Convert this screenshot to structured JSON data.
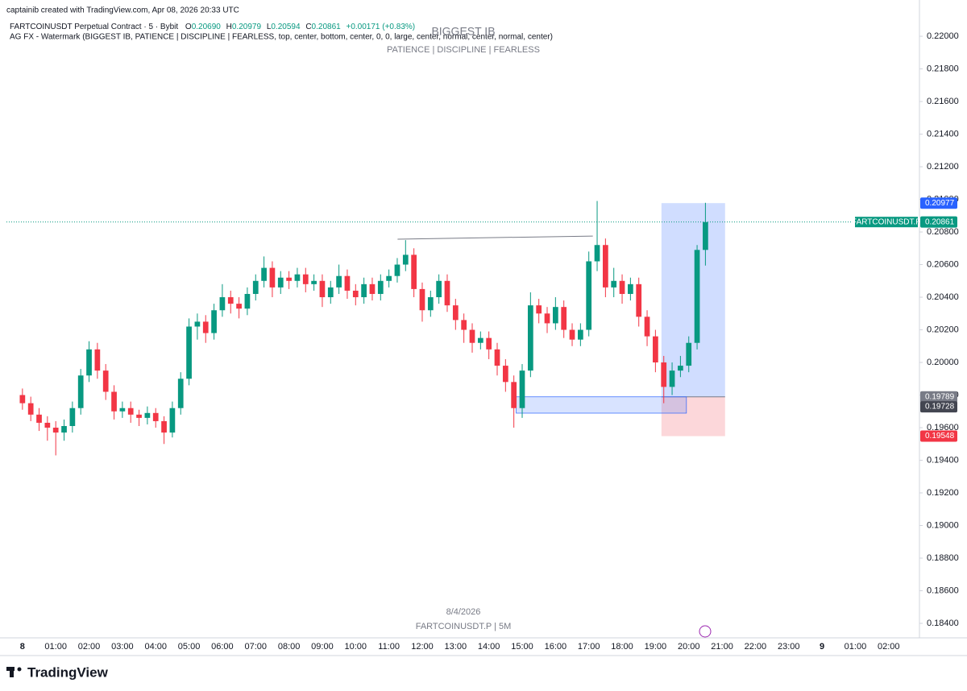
{
  "header": {
    "credit": "captainib created with TradingView.com, Apr 08, 2026 20:33 UTC",
    "symbol": "FARTCOINUSDT Perpetual Contract · 5 · Bybit",
    "o_label": "O",
    "o": "0.20690",
    "h_label": "H",
    "h": "0.20979",
    "l_label": "L",
    "l": "0.20594",
    "c_label": "C",
    "c": "0.20861",
    "change": "+0.00171 (+0.83%)",
    "indicator": "AG FX - Watermark (BIGGEST IB, PATIENCE  |  DISCIPLINE  |  FEARLESS, top, center, bottom, center, 0, 0, large, center, normal, center, normal, center)"
  },
  "watermark": {
    "title": "BIGGEST IB",
    "subtitle": "PATIENCE  |  DISCIPLINE  |  FEARLESS",
    "date": "8/4/2026",
    "symbol": "FARTCOINUSDT.P | 5M"
  },
  "footer": {
    "brand": "TradingView"
  },
  "chart_data": {
    "type": "candlestick",
    "up_color": "#089981",
    "down_color": "#f23645",
    "x": [
      0,
      0.25,
      0.5,
      0.75,
      1,
      1.25,
      1.5,
      1.75,
      2,
      2.25,
      2.5,
      2.75,
      3,
      3.25,
      3.5,
      3.75,
      4,
      4.25,
      4.5,
      4.75,
      5,
      5.25,
      5.5,
      5.75,
      6,
      6.25,
      6.5,
      6.75,
      7,
      7.25,
      7.5,
      7.75,
      8,
      8.25,
      8.5,
      8.75,
      9,
      9.25,
      9.5,
      9.75,
      10,
      10.25,
      10.5,
      10.75,
      11,
      11.25,
      11.5,
      11.75,
      12,
      12.25,
      12.5,
      12.75,
      13,
      13.25,
      13.5,
      13.75,
      14,
      14.25,
      14.5,
      14.75,
      15,
      15.25,
      15.5,
      15.75,
      16,
      16.25,
      16.5,
      16.75,
      17,
      17.25,
      17.5,
      17.75,
      18,
      18.25,
      18.5,
      18.75,
      19,
      19.25,
      19.5,
      19.75,
      20,
      20.25,
      20.5
    ],
    "candles": [
      [
        0.198,
        0.1984,
        0.1971,
        0.1975
      ],
      [
        0.1975,
        0.1979,
        0.1964,
        0.1968
      ],
      [
        0.1968,
        0.1972,
        0.1958,
        0.1963
      ],
      [
        0.1963,
        0.1967,
        0.1952,
        0.196
      ],
      [
        0.196,
        0.1964,
        0.1943,
        0.1957
      ],
      [
        0.1957,
        0.1965,
        0.1952,
        0.1961
      ],
      [
        0.1961,
        0.1976,
        0.1957,
        0.1972
      ],
      [
        0.1972,
        0.1996,
        0.1968,
        0.1992
      ],
      [
        0.1992,
        0.2013,
        0.1988,
        0.2008
      ],
      [
        0.2008,
        0.2012,
        0.199,
        0.1995
      ],
      [
        0.1995,
        0.1999,
        0.1977,
        0.1982
      ],
      [
        0.1982,
        0.1986,
        0.1965,
        0.197
      ],
      [
        0.197,
        0.1976,
        0.1966,
        0.1972
      ],
      [
        0.1972,
        0.1976,
        0.1963,
        0.1968
      ],
      [
        0.1968,
        0.1971,
        0.1961,
        0.1966
      ],
      [
        0.1966,
        0.1973,
        0.1962,
        0.1969
      ],
      [
        0.1969,
        0.1972,
        0.196,
        0.1964
      ],
      [
        0.1964,
        0.1967,
        0.195,
        0.1957
      ],
      [
        0.1957,
        0.1976,
        0.1954,
        0.1972
      ],
      [
        0.1972,
        0.1994,
        0.1968,
        0.199
      ],
      [
        0.199,
        0.2027,
        0.1986,
        0.2022
      ],
      [
        0.2022,
        0.203,
        0.2014,
        0.2025
      ],
      [
        0.2025,
        0.2029,
        0.2012,
        0.2018
      ],
      [
        0.2018,
        0.2036,
        0.2014,
        0.2032
      ],
      [
        0.2032,
        0.2048,
        0.2028,
        0.204
      ],
      [
        0.204,
        0.2044,
        0.203,
        0.2036
      ],
      [
        0.2036,
        0.204,
        0.2027,
        0.2033
      ],
      [
        0.2033,
        0.2046,
        0.2029,
        0.2042
      ],
      [
        0.2042,
        0.2054,
        0.2038,
        0.205
      ],
      [
        0.205,
        0.2065,
        0.2046,
        0.2058
      ],
      [
        0.2058,
        0.2062,
        0.204,
        0.2046
      ],
      [
        0.2046,
        0.2056,
        0.2042,
        0.2052
      ],
      [
        0.2052,
        0.2056,
        0.2045,
        0.205
      ],
      [
        0.205,
        0.2058,
        0.2046,
        0.2054
      ],
      [
        0.2054,
        0.2058,
        0.2043,
        0.2048
      ],
      [
        0.2048,
        0.2054,
        0.2044,
        0.205
      ],
      [
        0.205,
        0.2054,
        0.2034,
        0.204
      ],
      [
        0.204,
        0.205,
        0.2036,
        0.2046
      ],
      [
        0.2046,
        0.206,
        0.2042,
        0.2053
      ],
      [
        0.2053,
        0.2057,
        0.2039,
        0.2044
      ],
      [
        0.2044,
        0.2048,
        0.2035,
        0.204
      ],
      [
        0.204,
        0.2052,
        0.2036,
        0.2048
      ],
      [
        0.2048,
        0.2052,
        0.2038,
        0.2042
      ],
      [
        0.2042,
        0.2054,
        0.2038,
        0.205
      ],
      [
        0.205,
        0.2057,
        0.2046,
        0.2053
      ],
      [
        0.2053,
        0.2064,
        0.2049,
        0.206
      ],
      [
        0.206,
        0.2075,
        0.2056,
        0.2066
      ],
      [
        0.2066,
        0.207,
        0.204,
        0.2045
      ],
      [
        0.2045,
        0.2049,
        0.2025,
        0.2032
      ],
      [
        0.2032,
        0.2044,
        0.2028,
        0.204
      ],
      [
        0.204,
        0.2054,
        0.2036,
        0.205
      ],
      [
        0.205,
        0.2054,
        0.2031,
        0.2035
      ],
      [
        0.2035,
        0.2039,
        0.202,
        0.2026
      ],
      [
        0.2026,
        0.203,
        0.2012,
        0.202
      ],
      [
        0.202,
        0.2024,
        0.2006,
        0.2012
      ],
      [
        0.2012,
        0.2019,
        0.2008,
        0.2015
      ],
      [
        0.2015,
        0.2019,
        0.2002,
        0.2008
      ],
      [
        0.2008,
        0.2012,
        0.1992,
        0.1998
      ],
      [
        0.1998,
        0.2002,
        0.1982,
        0.1988
      ],
      [
        0.1988,
        0.1992,
        0.196,
        0.1972
      ],
      [
        0.1972,
        0.1999,
        0.1966,
        0.1995
      ],
      [
        0.1995,
        0.2043,
        0.1991,
        0.2035
      ],
      [
        0.2035,
        0.2039,
        0.2024,
        0.203
      ],
      [
        0.203,
        0.2034,
        0.2018,
        0.2024
      ],
      [
        0.2024,
        0.204,
        0.202,
        0.2034
      ],
      [
        0.2034,
        0.2038,
        0.2015,
        0.202
      ],
      [
        0.202,
        0.2024,
        0.201,
        0.2014
      ],
      [
        0.2014,
        0.2024,
        0.201,
        0.202
      ],
      [
        0.202,
        0.2068,
        0.2016,
        0.2062
      ],
      [
        0.2062,
        0.2099,
        0.2056,
        0.2072
      ],
      [
        0.2072,
        0.2076,
        0.204,
        0.2046
      ],
      [
        0.2046,
        0.2058,
        0.204,
        0.205
      ],
      [
        0.205,
        0.2054,
        0.2036,
        0.2042
      ],
      [
        0.2042,
        0.2052,
        0.2038,
        0.2048
      ],
      [
        0.2048,
        0.2052,
        0.2022,
        0.2028
      ],
      [
        0.2028,
        0.2032,
        0.201,
        0.2016
      ],
      [
        0.2016,
        0.202,
        0.1994,
        0.2
      ],
      [
        0.2,
        0.2004,
        0.1975,
        0.1985
      ],
      [
        0.1985,
        0.2,
        0.198,
        0.1995
      ],
      [
        0.1995,
        0.2004,
        0.1991,
        0.1998
      ],
      [
        0.1998,
        0.2016,
        0.1994,
        0.2012
      ],
      [
        0.2012,
        0.2072,
        0.2008,
        0.2069
      ],
      [
        0.2069,
        0.20979,
        0.20594,
        0.20861
      ]
    ],
    "xlim": [
      -0.48,
      26.9
    ],
    "ylim": [
      0.18321,
      0.22183
    ],
    "xticks": [
      {
        "value": 0,
        "label": "8"
      },
      {
        "value": 1,
        "label": "01:00"
      },
      {
        "value": 2,
        "label": "02:00"
      },
      {
        "value": 3,
        "label": "03:00"
      },
      {
        "value": 4,
        "label": "04:00"
      },
      {
        "value": 5,
        "label": "05:00"
      },
      {
        "value": 6,
        "label": "06:00"
      },
      {
        "value": 7,
        "label": "07:00"
      },
      {
        "value": 8,
        "label": "08:00"
      },
      {
        "value": 9,
        "label": "09:00"
      },
      {
        "value": 10,
        "label": "10:00"
      },
      {
        "value": 11,
        "label": "11:00"
      },
      {
        "value": 12,
        "label": "12:00"
      },
      {
        "value": 13,
        "label": "13:00"
      },
      {
        "value": 14,
        "label": "14:00"
      },
      {
        "value": 15,
        "label": "15:00"
      },
      {
        "value": 16,
        "label": "16:00"
      },
      {
        "value": 17,
        "label": "17:00"
      },
      {
        "value": 18,
        "label": "18:00"
      },
      {
        "value": 19,
        "label": "19:00"
      },
      {
        "value": 20,
        "label": "20:00"
      },
      {
        "value": 21,
        "label": "21:00"
      },
      {
        "value": 22,
        "label": "22:00"
      },
      {
        "value": 23,
        "label": "23:00"
      },
      {
        "value": 24,
        "label": "9"
      },
      {
        "value": 25,
        "label": "01:00"
      },
      {
        "value": 26,
        "label": "02:00"
      }
    ],
    "yticks": [
      {
        "value": 0.184,
        "label": "0.18400"
      },
      {
        "value": 0.186,
        "label": "0.18600"
      },
      {
        "value": 0.188,
        "label": "0.18800"
      },
      {
        "value": 0.19,
        "label": "0.19000"
      },
      {
        "value": 0.192,
        "label": "0.19200"
      },
      {
        "value": 0.194,
        "label": "0.19400"
      },
      {
        "value": 0.196,
        "label": "0.19600"
      },
      {
        "value": 0.198,
        "label": "0.19800"
      },
      {
        "value": 0.2,
        "label": "0.20000"
      },
      {
        "value": 0.202,
        "label": "0.20200"
      },
      {
        "value": 0.204,
        "label": "0.20400"
      },
      {
        "value": 0.206,
        "label": "0.20600"
      },
      {
        "value": 0.208,
        "label": "0.20800"
      },
      {
        "value": 0.21,
        "label": "0.21000"
      },
      {
        "value": 0.212,
        "label": "0.21200"
      },
      {
        "value": 0.214,
        "label": "0.21400"
      },
      {
        "value": 0.216,
        "label": "0.21600"
      },
      {
        "value": 0.218,
        "label": "0.21800"
      },
      {
        "value": 0.22,
        "label": "0.22000"
      }
    ],
    "price_labels": [
      {
        "value": 0.20977,
        "color": "#2962ff"
      },
      {
        "value": 0.20861,
        "color": "#089981"
      },
      {
        "value": 0.19789,
        "color": "#787b86"
      },
      {
        "value": 0.19728,
        "color": "#434651"
      },
      {
        "value": 0.19548,
        "color": "#f23645"
      }
    ],
    "last_price_tag": "FARTCOINUSDT.P",
    "position": {
      "x": [
        19.18,
        21.09
      ],
      "entry": 0.19789,
      "target": 0.20977,
      "stop": 0.19548
    },
    "zone": {
      "x": [
        14.82,
        19.93
      ],
      "y": [
        0.19789,
        0.19689
      ]
    },
    "trendline": {
      "x": [
        11.26,
        17.12
      ],
      "y": [
        0.20756,
        0.20775
      ]
    }
  }
}
